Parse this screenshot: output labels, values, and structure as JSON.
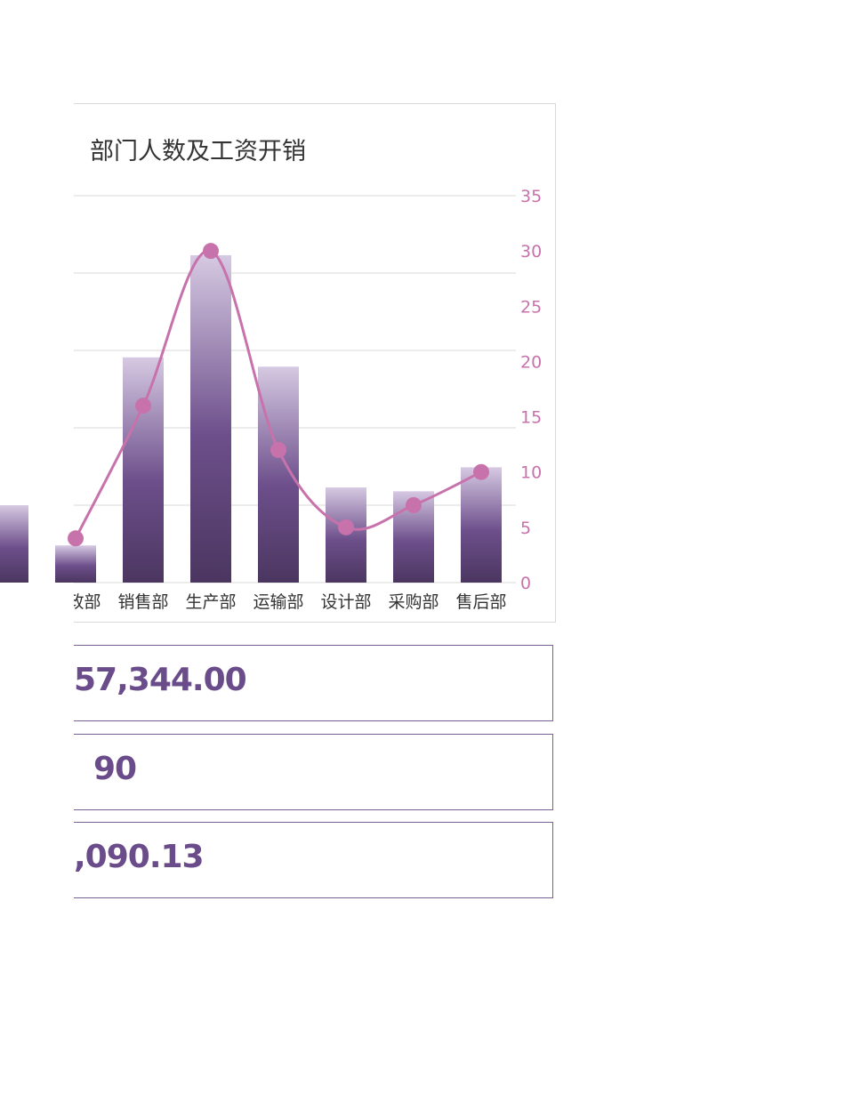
{
  "chart_data": {
    "type": "bar+line",
    "title": "部门人数及工资开销",
    "categories": [
      "",
      "行政部",
      "销售部",
      "生产部",
      "运输部",
      "设计部",
      "采购部",
      "售后部"
    ],
    "series": [
      {
        "type": "bar",
        "axis": "left",
        "values": [
          1.0,
          0.48,
          2.91,
          4.23,
          2.79,
          1.23,
          1.18,
          1.49
        ]
      },
      {
        "type": "line",
        "smooth": true,
        "axis": "right",
        "values": [
          null,
          4,
          16,
          30,
          12,
          5,
          7,
          10
        ]
      }
    ],
    "left_axis": {
      "ylim": [
        0,
        5
      ],
      "labels_visible": false
    },
    "right_axis": {
      "ylim": [
        0,
        35
      ],
      "ticks": [
        "0",
        "5",
        "10",
        "15",
        "20",
        "25",
        "30",
        "35"
      ]
    },
    "grid": true,
    "colors": {
      "bar_top": "#d6c9e2",
      "bar_mid": "#6d4f8b",
      "bar_bottom": "#4b3660",
      "line": "#c872ac",
      "axis_text": "#c872ac"
    }
  },
  "kpis": [
    "57,344.00",
    "90",
    ",090.13"
  ]
}
